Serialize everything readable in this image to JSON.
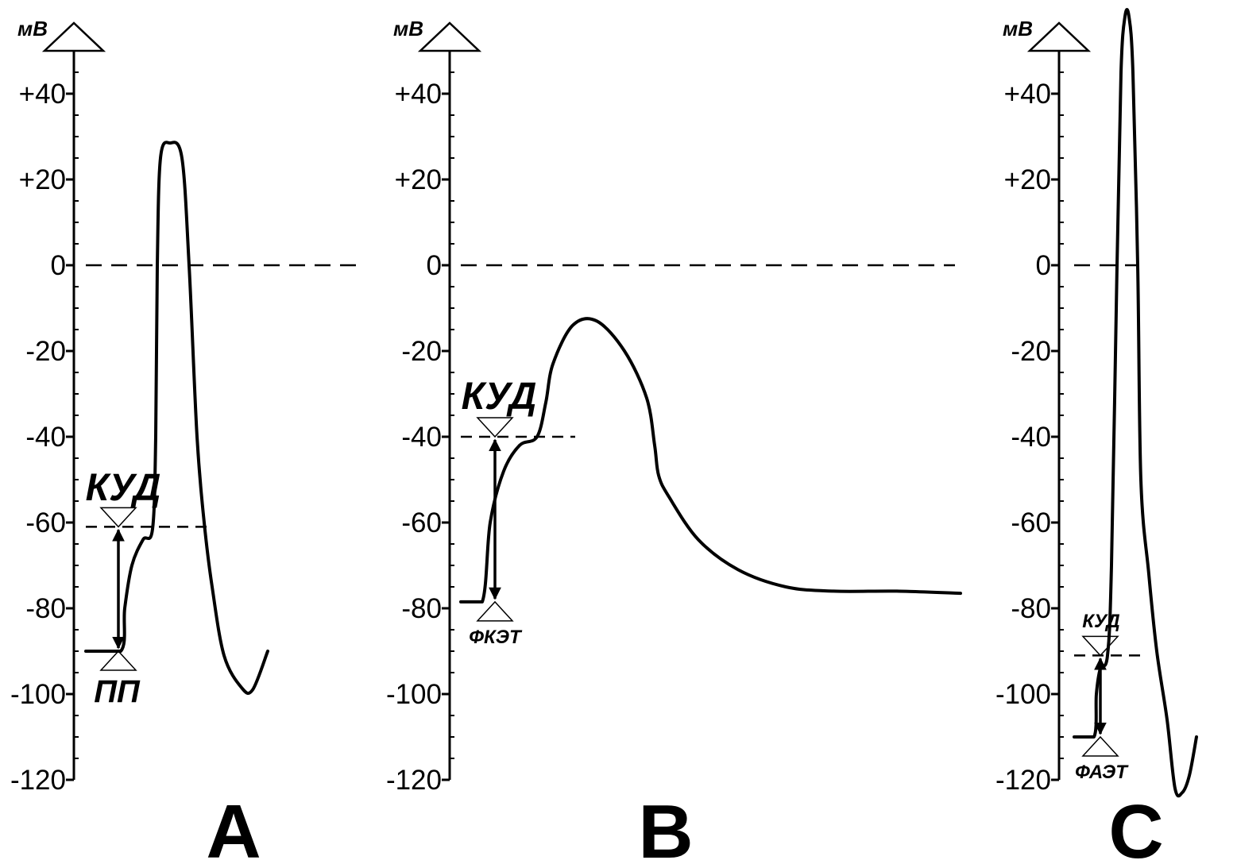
{
  "chart_data": [
    {
      "type": "line",
      "panel_label": "A",
      "ylabel": "мВ",
      "ylim": [
        -120,
        50
      ],
      "yticks": [
        "+40",
        "+20",
        "0",
        "-20",
        "-40",
        "-60",
        "-80",
        "-100",
        "-120"
      ],
      "threshold_label": "КУД",
      "resting_label": "ПП",
      "threshold_mV": -61,
      "resting_mV": -90,
      "series": [
        {
          "values": [
            [
              0,
              -90
            ],
            [
              44,
              -90
            ],
            [
              49,
              -80
            ],
            [
              58,
              -70
            ],
            [
              72,
              -64
            ],
            [
              84,
              -61.5
            ],
            [
              88,
              -40
            ],
            [
              90,
              0
            ],
            [
              94,
              25
            ],
            [
              106,
              28.5
            ],
            [
              121,
              25
            ],
            [
              130,
              0
            ],
            [
              140,
              -40
            ],
            [
              149,
              -60
            ],
            [
              159,
              -75
            ],
            [
              174,
              -91
            ],
            [
              196,
              -98.5
            ],
            [
              210,
              -99
            ],
            [
              229,
              -90
            ]
          ]
        }
      ]
    },
    {
      "type": "line",
      "panel_label": "B",
      "ylabel": "мВ",
      "ylim": [
        -120,
        50
      ],
      "yticks": [
        "+40",
        "+20",
        "0",
        "-20",
        "-40",
        "-60",
        "-80",
        "-100",
        "-120"
      ],
      "threshold_label": "КУД",
      "resting_label": "ФКЭТ",
      "threshold_mV": -40,
      "resting_mV": -78.5,
      "series": [
        {
          "values": [
            [
              0,
              -78.5
            ],
            [
              27,
              -78.5
            ],
            [
              37,
              -60
            ],
            [
              54,
              -48
            ],
            [
              74,
              -42
            ],
            [
              96,
              -40
            ],
            [
              107,
              -32
            ],
            [
              116,
              -23
            ],
            [
              141,
              -14
            ],
            [
              171,
              -13
            ],
            [
              206,
              -20
            ],
            [
              234,
              -31
            ],
            [
              244,
              -42
            ],
            [
              249,
              -49
            ],
            [
              262,
              -54
            ],
            [
              299,
              -64
            ],
            [
              349,
              -71
            ],
            [
              409,
              -75
            ],
            [
              469,
              -76
            ],
            [
              549,
              -76
            ],
            [
              629,
              -76.5
            ]
          ]
        }
      ]
    },
    {
      "type": "line",
      "panel_label": "C",
      "ylabel": "мВ",
      "ylim": [
        -120,
        50
      ],
      "yticks": [
        "+40",
        "+20",
        "0",
        "-20",
        "-40",
        "-60",
        "-80",
        "-100",
        "-120"
      ],
      "threshold_label": "КУД",
      "resting_label": "ФАЭТ",
      "threshold_mV": -91,
      "resting_mV": -110,
      "series": [
        {
          "values": [
            [
              0,
              -110
            ],
            [
              25,
              -110
            ],
            [
              28,
              -100
            ],
            [
              33,
              -94
            ],
            [
              42,
              -91
            ],
            [
              47,
              -70
            ],
            [
              54,
              0
            ],
            [
              59,
              45
            ],
            [
              64,
              58
            ],
            [
              69,
              58
            ],
            [
              74,
              45
            ],
            [
              80,
              0
            ],
            [
              84,
              -50
            ],
            [
              94,
              -72
            ],
            [
              104,
              -90
            ],
            [
              117,
              -106
            ],
            [
              127,
              -122
            ],
            [
              136,
              -123
            ],
            [
              145,
              -119
            ],
            [
              154,
              -110
            ]
          ]
        }
      ]
    }
  ]
}
